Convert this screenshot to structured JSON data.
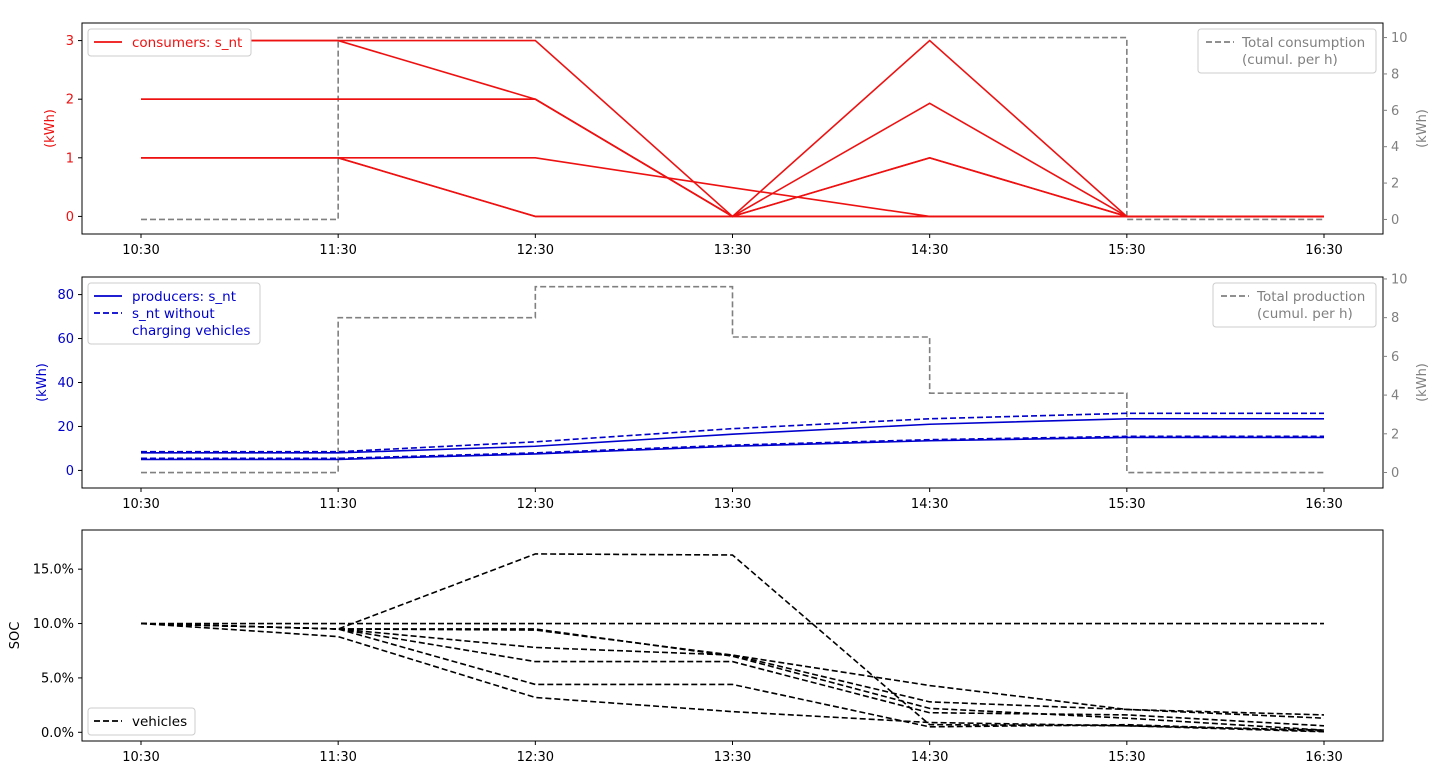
{
  "chart_data": [
    {
      "type": "line",
      "x": [
        "10:30",
        "11:30",
        "12:30",
        "13:30",
        "14:30",
        "15:30",
        "16:30"
      ],
      "ylabel": "(kWh)",
      "ylim": [
        -0.3,
        3.3
      ],
      "yticks": [
        0,
        1,
        2,
        3
      ],
      "y2label": "(kWh)",
      "y2lim": [
        -0.8,
        10.8
      ],
      "y2ticks": [
        0,
        2,
        4,
        6,
        8,
        10
      ],
      "colors": {
        "primary": "#ee1111",
        "secondary": "#808080"
      },
      "legend": {
        "entries": [
          "consumers: s_nt"
        ],
        "position": "top-left"
      },
      "legend2": {
        "entries": [
          "Total consumption\n(cumul. per h)"
        ],
        "position": "top-right"
      },
      "series": [
        {
          "name": "consumers: s_nt",
          "values": [
            3,
            3,
            3,
            0,
            3,
            0,
            0
          ]
        },
        {
          "values": [
            3,
            3,
            2,
            0,
            1,
            0,
            0
          ]
        },
        {
          "values": [
            2,
            2,
            2,
            0,
            1.93,
            0,
            0
          ]
        },
        {
          "values": [
            2,
            2,
            2,
            0,
            0,
            0,
            0
          ]
        },
        {
          "values": [
            1,
            1,
            1,
            0.49,
            0,
            0,
            0
          ]
        },
        {
          "values": [
            1,
            1,
            0,
            0,
            1,
            0,
            0
          ]
        },
        {
          "values": [
            1,
            1,
            0,
            0,
            0,
            0,
            0
          ]
        }
      ],
      "series2": [
        {
          "name": "Total consumption\n(cumul. per h)",
          "step": true,
          "values": [
            0,
            10,
            10,
            10,
            10,
            0,
            0
          ]
        }
      ]
    },
    {
      "type": "line",
      "x": [
        "10:30",
        "11:30",
        "12:30",
        "13:30",
        "14:30",
        "15:30",
        "16:30"
      ],
      "ylabel": "(kWh)",
      "ylim": [
        -8,
        88
      ],
      "yticks": [
        0,
        20,
        40,
        60,
        80
      ],
      "y2label": "(kWh)",
      "y2lim": [
        -0.8,
        10.1
      ],
      "y2ticks": [
        0,
        2,
        4,
        6,
        8,
        10
      ],
      "colors": {
        "primary": "#0000cc",
        "secondary": "#808080"
      },
      "legend": {
        "entries": [
          "producers: s_nt",
          "s_nt without\ncharging vehicles"
        ],
        "position": "top-left"
      },
      "legend2": {
        "entries": [
          "Total production\n(cumul. per h)"
        ],
        "position": "top-right"
      },
      "series": [
        {
          "name": "producers: s_nt",
          "dashed": false,
          "values": [
            8,
            8,
            11,
            16.5,
            21,
            23.5,
            23.5
          ]
        },
        {
          "dashed": false,
          "values": [
            5,
            5,
            7.5,
            11,
            13.5,
            15,
            15
          ]
        },
        {
          "name": "s_nt without\ncharging vehicles",
          "dashed": true,
          "values": [
            8.5,
            8.5,
            13,
            19,
            23.5,
            26,
            26
          ]
        },
        {
          "dashed": true,
          "values": [
            5.5,
            5.5,
            8,
            11.5,
            14,
            15.5,
            15.5
          ]
        }
      ],
      "series2": [
        {
          "name": "Total production\n(cumul. per h)",
          "step": true,
          "values": [
            0,
            8,
            9.6,
            7,
            4.1,
            0,
            0
          ]
        }
      ]
    },
    {
      "type": "line",
      "x": [
        "10:30",
        "11:30",
        "12:30",
        "13:30",
        "14:30",
        "15:30",
        "16:30"
      ],
      "ylabel": "SOC",
      "ylim": [
        -0.8,
        18.6
      ],
      "yticks": [
        0,
        5,
        10,
        15
      ],
      "ytick_labels": [
        "0.0%",
        "5.0%",
        "10.0%",
        "15.0%"
      ],
      "colors": {
        "primary": "#000000"
      },
      "legend": {
        "entries": [
          "vehicles"
        ],
        "position": "bottom-left"
      },
      "series": [
        {
          "name": "vehicles",
          "dashed": true,
          "values": [
            10,
            10,
            10,
            10,
            10,
            10,
            10
          ]
        },
        {
          "dashed": true,
          "values": [
            10,
            9.5,
            16.4,
            16.3,
            0.7,
            0.6,
            0.2
          ]
        },
        {
          "dashed": true,
          "values": [
            10,
            9.5,
            9.5,
            7,
            2.2,
            1.3,
            0.2
          ]
        },
        {
          "dashed": true,
          "values": [
            10,
            9.5,
            9.4,
            7.1,
            2.8,
            2.1,
            1.6
          ]
        },
        {
          "dashed": true,
          "values": [
            10,
            9.5,
            7.8,
            7.1,
            4.3,
            2.1,
            1.3
          ]
        },
        {
          "dashed": true,
          "values": [
            10,
            9.5,
            6.5,
            6.5,
            1.8,
            1.6,
            0.6
          ]
        },
        {
          "dashed": true,
          "values": [
            10,
            9.5,
            4.4,
            4.4,
            0.5,
            0.7,
            0.1
          ]
        },
        {
          "dashed": true,
          "values": [
            10,
            8.8,
            3.2,
            1.9,
            0.9,
            0.6,
            0.05
          ]
        }
      ]
    }
  ]
}
